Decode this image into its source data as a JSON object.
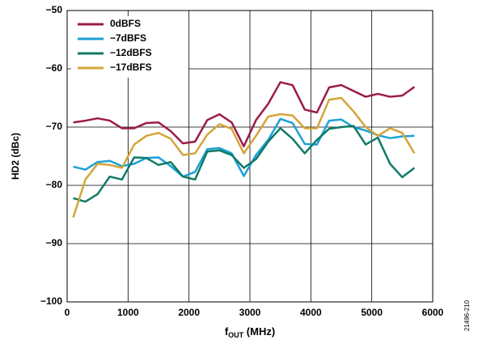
{
  "chart_data": {
    "type": "line",
    "xlabel": {
      "main": "f",
      "sub": "OUT",
      "rest": " (MHz)"
    },
    "ylabel": "HD2 (dBc)",
    "side_note": "21496-210",
    "x": [
      100,
      300,
      500,
      700,
      900,
      1100,
      1300,
      1500,
      1700,
      1900,
      2100,
      2300,
      2500,
      2700,
      2900,
      3100,
      3300,
      3500,
      3700,
      3900,
      4100,
      4300,
      4500,
      4700,
      4900,
      5100,
      5300,
      5500,
      5700
    ],
    "series": [
      {
        "name": "0dBFS",
        "color": "#9b1c4a",
        "values": [
          -69.2,
          -68.9,
          -68.5,
          -68.9,
          -70.2,
          -70.2,
          -69.3,
          -69.2,
          -70.7,
          -72.8,
          -72.5,
          -68.8,
          -67.8,
          -69.2,
          -73.3,
          -68.8,
          -66,
          -62.3,
          -62.8,
          -67,
          -67.5,
          -63.2,
          -62.8,
          -63.8,
          -64.8,
          -64.3,
          -64.8,
          -64.6,
          -63.1
        ]
      },
      {
        "name": "−7dBFS",
        "color": "#1ba1d8",
        "values": [
          -76.8,
          -77.3,
          -76,
          -75.8,
          -76.7,
          -76.3,
          -75.3,
          -75.2,
          -76.7,
          -78.5,
          -77.7,
          -73.8,
          -73.6,
          -74.5,
          -78.4,
          -74.8,
          -72.2,
          -68.6,
          -69.3,
          -72.9,
          -73,
          -68.9,
          -68.7,
          -70,
          -70.6,
          -71.4,
          -71.9,
          -71.6,
          -71.5
        ]
      },
      {
        "name": "−12dBFS",
        "color": "#117a65",
        "values": [
          -82.2,
          -82.8,
          -81.5,
          -78.5,
          -79,
          -75.2,
          -75.3,
          -76.5,
          -76,
          -78.5,
          -79,
          -74.2,
          -74,
          -74.8,
          -77,
          -75.5,
          -72.5,
          -70.2,
          -72,
          -74.5,
          -72.2,
          -70.3,
          -70,
          -69.8,
          -73,
          -71.8,
          -76.3,
          -78.6,
          -77
        ]
      },
      {
        "name": "−17dBFS",
        "color": "#d4a53a",
        "values": [
          -85.5,
          -79,
          -76.3,
          -76.5,
          -77,
          -73,
          -71.5,
          -71,
          -72,
          -74.8,
          -74.5,
          -71.3,
          -69.5,
          -70.3,
          -74.5,
          -71.5,
          -68.2,
          -67.8,
          -68,
          -70.2,
          -70.2,
          -65.3,
          -65,
          -67.3,
          -70,
          -71.5,
          -70.2,
          -71,
          -74.5
        ]
      }
    ],
    "xlim": [
      0,
      6000
    ],
    "xticks": [
      0,
      1000,
      2000,
      3000,
      4000,
      5000,
      6000
    ],
    "ylim": [
      -100,
      -50
    ],
    "yticks": [
      {
        "value": -100,
        "label": "−100"
      },
      {
        "value": -90,
        "label": "−90"
      },
      {
        "value": -80,
        "label": "−80"
      },
      {
        "value": -70,
        "label": "−70"
      },
      {
        "value": -60,
        "label": "−60"
      },
      {
        "value": -50,
        "label": "−50"
      }
    ],
    "grid": true,
    "legend": "upper left"
  }
}
